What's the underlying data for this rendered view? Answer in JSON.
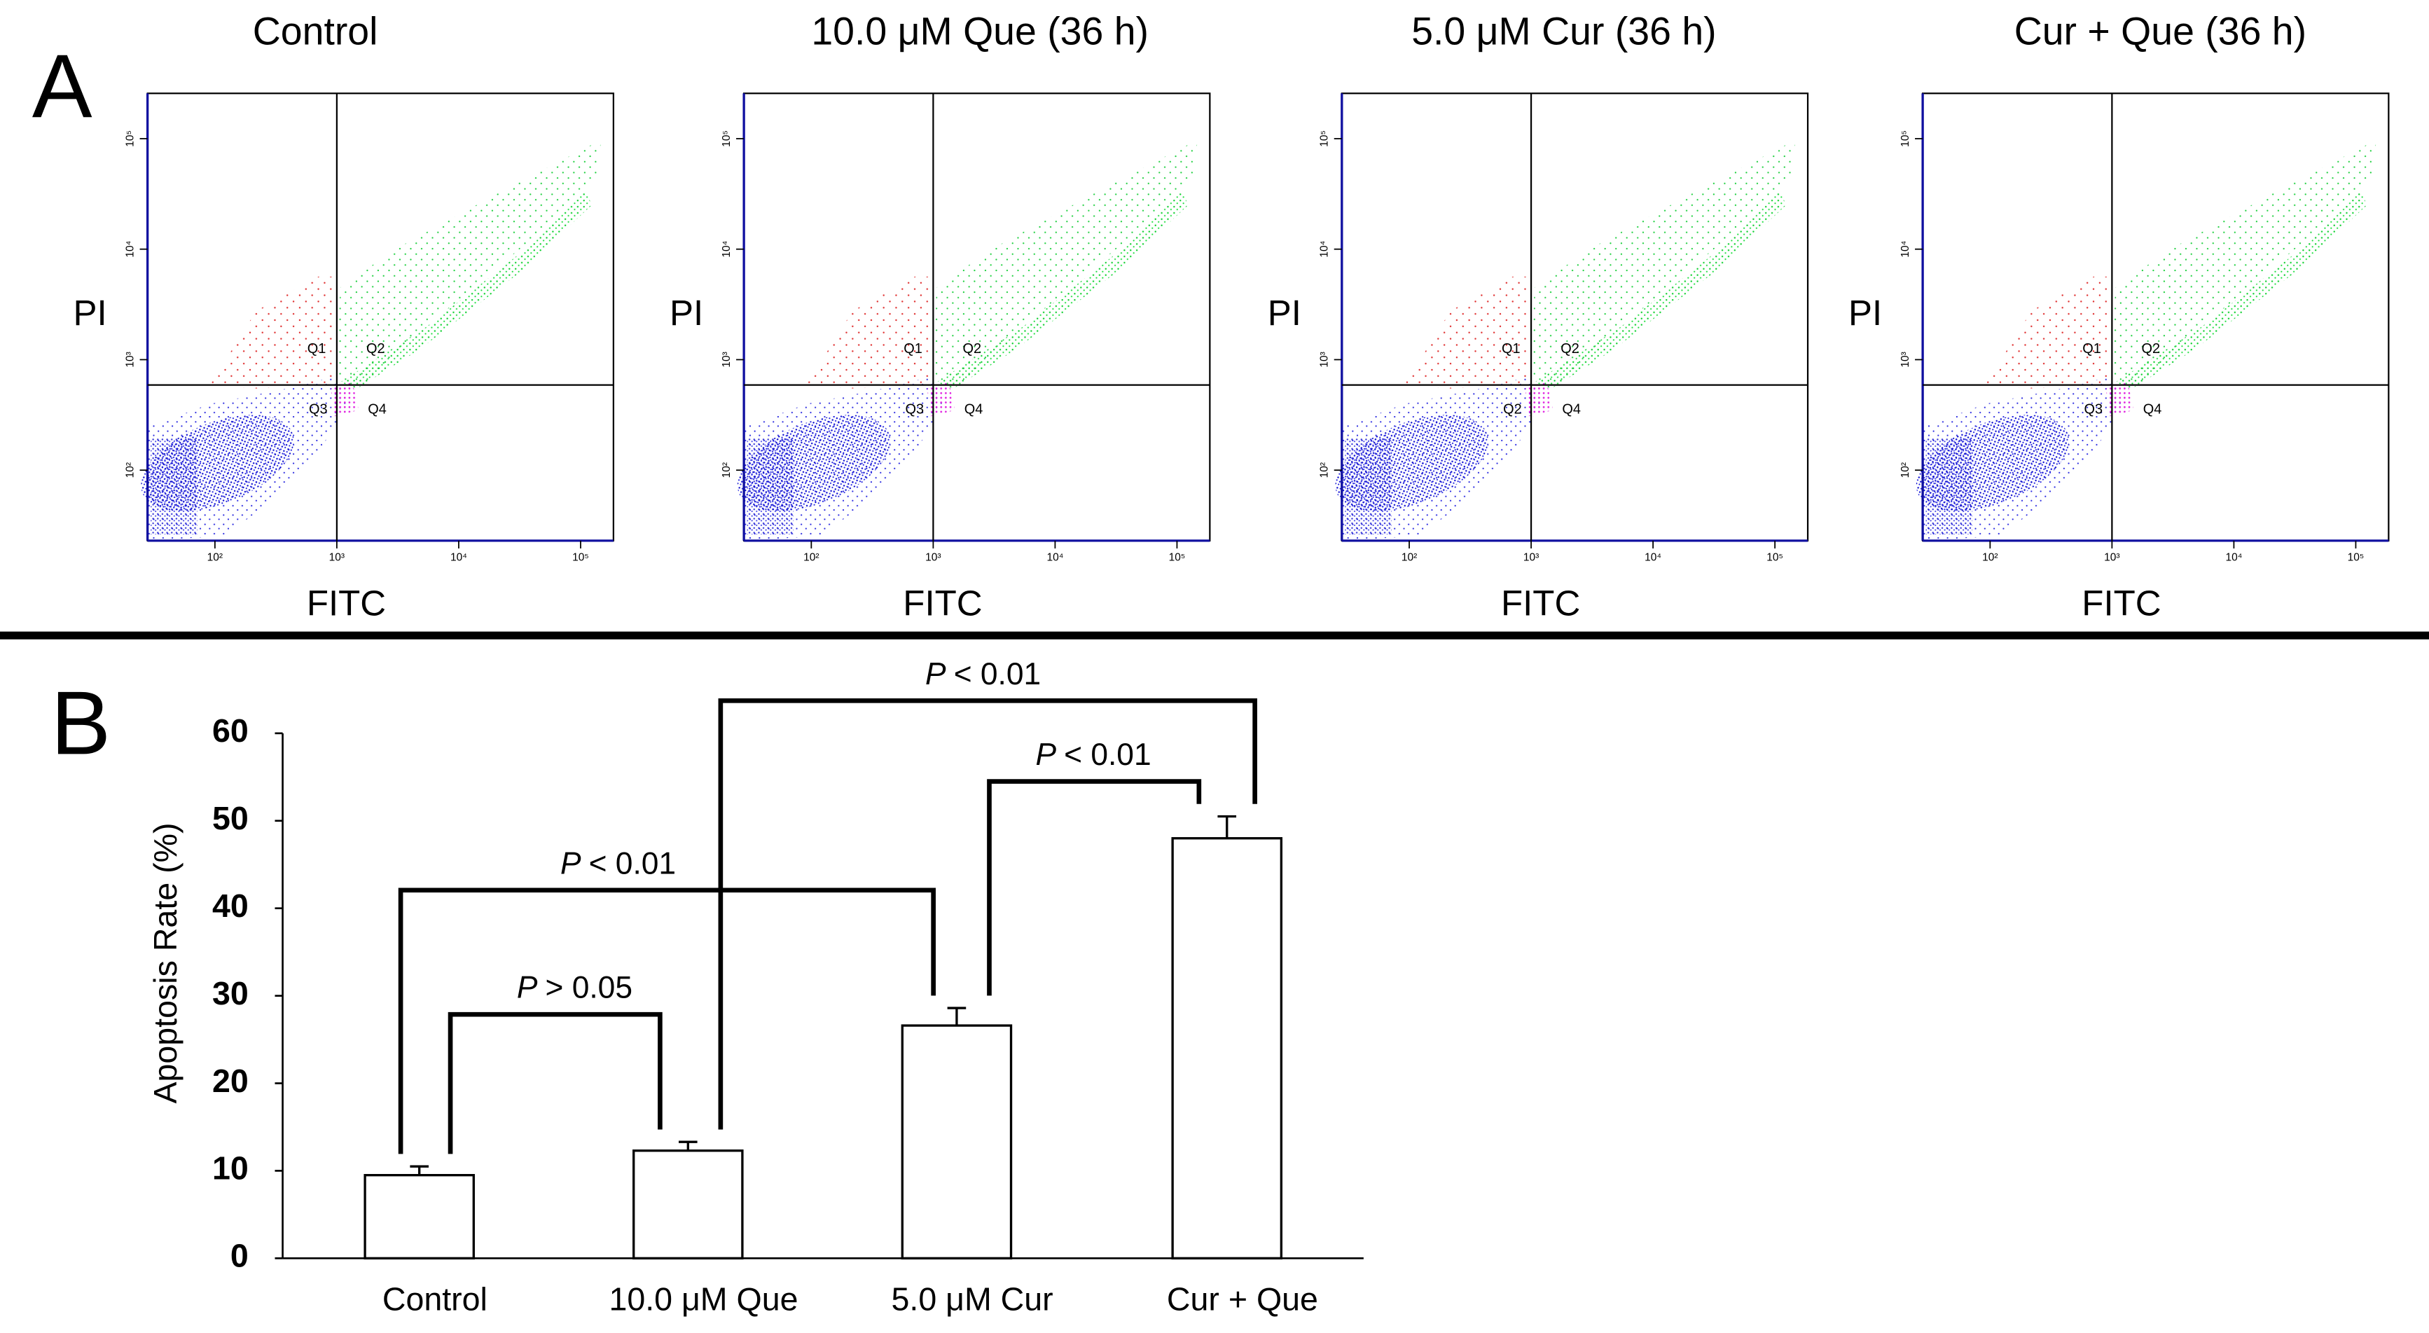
{
  "figure": {
    "panel_a": "A",
    "panel_b": "B"
  },
  "chart_data": [
    {
      "type": "scatter",
      "title": "Control",
      "x_label": "FITC",
      "y_label": "PI",
      "xscale": "log",
      "yscale": "log",
      "xlim": [
        28,
        186000
      ],
      "ylim": [
        23,
        257000
      ],
      "xticks": [
        {
          "value": 100,
          "label": "10²"
        },
        {
          "value": 1000,
          "label": "10³"
        },
        {
          "value": 10000,
          "label": "10⁴"
        },
        {
          "value": 100000,
          "label": "10⁵"
        }
      ],
      "yticks": [
        {
          "value": 100,
          "label": "10²"
        },
        {
          "value": 1000,
          "label": "10³"
        },
        {
          "value": 10000,
          "label": "10⁴"
        },
        {
          "value": 100000,
          "label": "10⁵"
        }
      ],
      "gate": {
        "x": 1000,
        "y": 590
      },
      "quadrant_labels": [
        "Q1",
        "Q2",
        "Q3",
        "Q4"
      ]
    },
    {
      "type": "scatter",
      "title": "10.0 μM Que (36 h)",
      "x_label": "FITC",
      "y_label": "PI",
      "xscale": "log",
      "yscale": "log",
      "xlim": [
        28,
        186000
      ],
      "ylim": [
        23,
        257000
      ],
      "xticks": [
        {
          "value": 100,
          "label": "10²"
        },
        {
          "value": 1000,
          "label": "10³"
        },
        {
          "value": 10000,
          "label": "10⁴"
        },
        {
          "value": 100000,
          "label": "10⁵"
        }
      ],
      "yticks": [
        {
          "value": 100,
          "label": "10²"
        },
        {
          "value": 1000,
          "label": "10³"
        },
        {
          "value": 10000,
          "label": "10⁴"
        },
        {
          "value": 100000,
          "label": "10⁵"
        }
      ],
      "gate": {
        "x": 1000,
        "y": 590
      },
      "quadrant_labels": [
        "Q1",
        "Q2",
        "Q3",
        "Q4"
      ]
    },
    {
      "type": "scatter",
      "title": "5.0 μM Cur (36 h)",
      "x_label": "FITC",
      "y_label": "PI",
      "xscale": "log",
      "yscale": "log",
      "xlim": [
        28,
        186000
      ],
      "ylim": [
        23,
        257000
      ],
      "xticks": [
        {
          "value": 100,
          "label": "10²"
        },
        {
          "value": 1000,
          "label": "10³"
        },
        {
          "value": 10000,
          "label": "10⁴"
        },
        {
          "value": 100000,
          "label": "10⁵"
        }
      ],
      "yticks": [
        {
          "value": 100,
          "label": "10²"
        },
        {
          "value": 1000,
          "label": "10³"
        },
        {
          "value": 10000,
          "label": "10⁴"
        },
        {
          "value": 100000,
          "label": "10⁵"
        }
      ],
      "gate": {
        "x": 1000,
        "y": 590
      },
      "quadrant_labels": [
        "Q1",
        "Q2",
        "Q2",
        "Q4"
      ]
    },
    {
      "type": "scatter",
      "title": "Cur + Que (36 h)",
      "x_label": "FITC",
      "y_label": "PI",
      "xscale": "log",
      "yscale": "log",
      "xlim": [
        28,
        186000
      ],
      "ylim": [
        23,
        257000
      ],
      "xticks": [
        {
          "value": 100,
          "label": "10²"
        },
        {
          "value": 1000,
          "label": "10³"
        },
        {
          "value": 10000,
          "label": "10⁴"
        },
        {
          "value": 100000,
          "label": "10⁵"
        }
      ],
      "yticks": [
        {
          "value": 100,
          "label": "10²"
        },
        {
          "value": 1000,
          "label": "10³"
        },
        {
          "value": 10000,
          "label": "10⁴"
        },
        {
          "value": 100000,
          "label": "10⁵"
        }
      ],
      "gate": {
        "x": 1000,
        "y": 590
      },
      "quadrant_labels": [
        "Q1",
        "Q2",
        "Q3",
        "Q4"
      ]
    },
    {
      "type": "bar",
      "y_label": "Apoptosis Rate (%)",
      "categories": [
        "Control",
        "10.0 μM Que",
        "5.0 μM Cur",
        "Cur + Que"
      ],
      "values": [
        9.5,
        12.3,
        26.6,
        48
      ],
      "errors": [
        1.0,
        1.0,
        2.0,
        2.5
      ],
      "color": "#ffffff",
      "ylim": [
        0,
        60
      ],
      "yticks": [
        0,
        10,
        20,
        30,
        40,
        50,
        60
      ],
      "annotations": [
        {
          "symbol": "P",
          "relation": "> 0.05"
        },
        {
          "symbol": "P",
          "relation": "< 0.01"
        },
        {
          "symbol": "P",
          "relation": "< 0.01"
        },
        {
          "symbol": "P",
          "relation": "< 0.01"
        }
      ]
    }
  ]
}
